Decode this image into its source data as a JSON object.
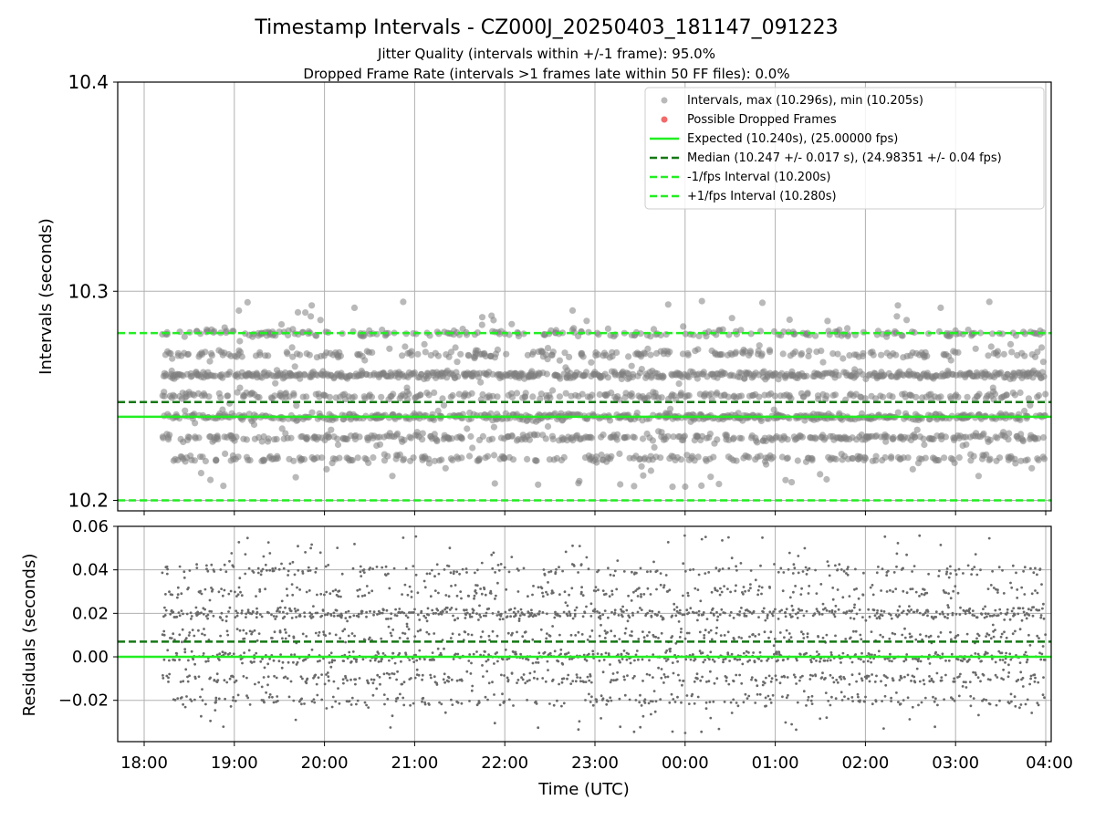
{
  "title": "Timestamp Intervals - CZ000J_20250403_181147_091223",
  "subtitle_lines": [
    "Jitter Quality (intervals within +/-1 frame): 95.0%",
    "Dropped Frame Rate (intervals >1 frames late within 50 FF files): 0.0%"
  ],
  "colors": {
    "points": "#808080",
    "dropped": "#f05050",
    "expected": "#22ee22",
    "median": "#147814",
    "interval": "#22ee22",
    "grid": "#b0b0b0"
  },
  "chart_data": [
    {
      "type": "scatter",
      "panel": "top",
      "xlabel": "",
      "ylabel": "Intervals (seconds)",
      "xlim": [
        "18:00",
        "04:00"
      ],
      "ylim": [
        10.195,
        10.4
      ],
      "y_ticks": [
        "10.2",
        "10.3",
        "10.4"
      ],
      "grid": true,
      "legend_position": "top-right",
      "series": [
        {
          "name": "Intervals, max (10.296s), min (10.205s)",
          "kind": "points",
          "x_start": "18:12",
          "x_end": "04:00",
          "approx_count": 3500,
          "max": 10.296,
          "min": 10.205,
          "levels": [
            10.22,
            10.23,
            10.24,
            10.25,
            10.26,
            10.27,
            10.28
          ]
        },
        {
          "name": "Possible Dropped Frames",
          "kind": "points",
          "count": 0
        }
      ],
      "hlines": [
        {
          "name": "Expected (10.240s), (25.00000 fps)",
          "y": 10.24,
          "style": "solid"
        },
        {
          "name": "Median (10.247 +/- 0.017 s), (24.98351 +/- 0.04 fps)",
          "y": 10.247,
          "style": "dashed"
        },
        {
          "name": "-1/fps Interval (10.200s)",
          "y": 10.2,
          "style": "dashed"
        },
        {
          "name": "+1/fps Interval (10.280s)",
          "y": 10.28,
          "style": "dashed"
        }
      ]
    },
    {
      "type": "scatter",
      "panel": "bottom",
      "xlabel": "Time (UTC)",
      "ylabel": "Residuals (seconds)",
      "x_ticks": [
        "18:00",
        "19:00",
        "20:00",
        "21:00",
        "22:00",
        "23:00",
        "00:00",
        "01:00",
        "02:00",
        "03:00",
        "04:00"
      ],
      "y_ticks": [
        "−0.02",
        "0.00",
        "0.02",
        "0.04",
        "0.06"
      ],
      "ylim": [
        -0.039,
        0.06
      ],
      "grid": true,
      "series": [
        {
          "kind": "residual-points",
          "x_start": "18:12",
          "x_end": "04:00",
          "levels": [
            -0.02,
            -0.01,
            0.0,
            0.01,
            0.02,
            0.03,
            0.04
          ],
          "max": 0.056,
          "min": -0.035
        }
      ],
      "hlines": [
        {
          "y": 0.0,
          "style": "solid"
        },
        {
          "y": 0.007,
          "style": "dashed"
        }
      ]
    }
  ]
}
